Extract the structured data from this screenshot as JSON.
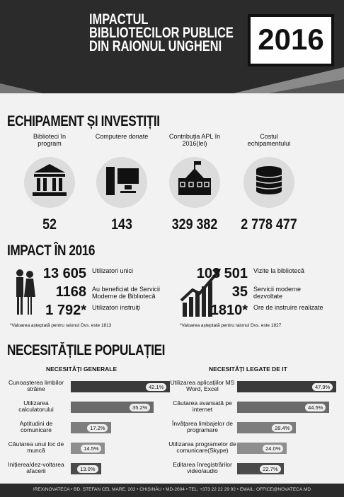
{
  "header": {
    "title": "IMPACTUL BIBLIOTECILOR PUBLICE DIN RAIONUL UNGHENI",
    "year": "2016"
  },
  "equipment": {
    "title": "ECHIPAMENT ȘI INVESTIȚII",
    "items": [
      {
        "label": "Biblioteci în program",
        "value": "52"
      },
      {
        "label": "Computere donate",
        "value": "143"
      },
      {
        "label": "Contribuția APL în 2016(lei)",
        "value": "329 382"
      },
      {
        "label": "Costul echipamentului",
        "value": "2 778 477"
      }
    ]
  },
  "impact": {
    "title": "IMPACT ÎN 2016",
    "left": {
      "stats": [
        {
          "value": "13 605",
          "label": "Utilizatori unici"
        },
        {
          "value": "1168",
          "label": "Au beneficiat de Servicii Moderne de Bibliotecă"
        },
        {
          "value": "1 792*",
          "label": "Utilizatori instruiți"
        }
      ],
      "note": "*Valoarea așteptată pentru raionul Dvs. este 1813"
    },
    "right": {
      "stats": [
        {
          "value": "103 501",
          "label": "Vizite la bibliotecă"
        },
        {
          "value": "35",
          "label": "Servicii moderne dezvoltate"
        },
        {
          "value": "1810*",
          "label": "Ore de instruire realizate"
        }
      ],
      "note": "*Valoarea așteptată pentru raionul Dvs. este 1827"
    }
  },
  "needs": {
    "title": "NECESITĂȚILE POPULAȚIEI",
    "general": {
      "title": "NECESITĂȚI GENERALE",
      "labels": [
        "Cunoașterea limbilor străine",
        "Utilizarea calculatorului",
        "Aptitudini de comunicare",
        "Căutarea unui loc de muncă",
        "Inițierea/dez-voltarea afacerii"
      ],
      "values": [
        42.1,
        35.2,
        17.2,
        14.5,
        13.0
      ],
      "value_labels": [
        "42.1%",
        "35.2%",
        "17.2%",
        "14.5%",
        "13.0%"
      ]
    },
    "it": {
      "title": "NECESITĂȚI LEGATE DE IT",
      "labels": [
        "Utilizarea aplicațiilor MS Word, Excel",
        "Căutarea avansată pe internet",
        "Învățarea limbajelor de programare",
        "Utilizarea programelor de comunicare(Skype)",
        "Editarea înregistrărilor video/audio"
      ],
      "values": [
        47.9,
        44.5,
        28.4,
        24.0,
        22.7
      ],
      "value_labels": [
        "47.9%",
        "44.5%",
        "28.4%",
        "24.0%",
        "22.7%"
      ]
    }
  },
  "footer": "IREX/NOVATECA • BD. ȘTEFAN CEL MARE, 202 • CHIȘINĂU • MD-2004 • TEL: +373 22 22 29 92 • EMAIL: OFFICE@NOVATECA.MD"
}
